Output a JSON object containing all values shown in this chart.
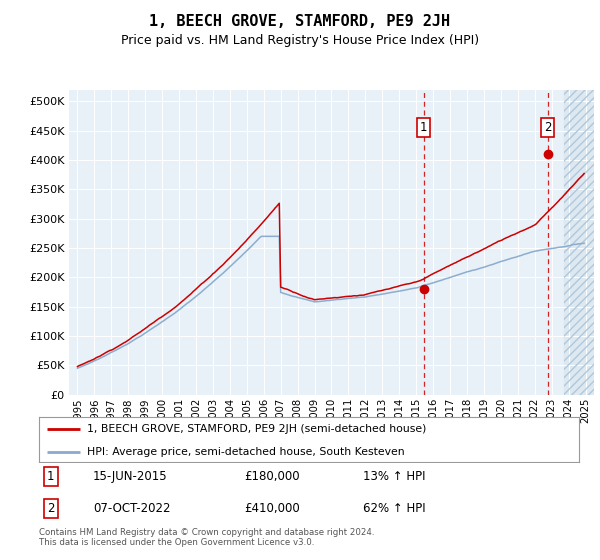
{
  "title": "1, BEECH GROVE, STAMFORD, PE9 2JH",
  "subtitle": "Price paid vs. HM Land Registry's House Price Index (HPI)",
  "red_label": "1, BEECH GROVE, STAMFORD, PE9 2JH (semi-detached house)",
  "blue_label": "HPI: Average price, semi-detached house, South Kesteven",
  "annotation1": {
    "label": "1",
    "date": "15-JUN-2015",
    "price": "£180,000",
    "hpi": "13% ↑ HPI",
    "x_year": 2015.45
  },
  "annotation2": {
    "label": "2",
    "date": "07-OCT-2022",
    "price": "£410,000",
    "hpi": "62% ↑ HPI",
    "x_year": 2022.77
  },
  "footer": "Contains HM Land Registry data © Crown copyright and database right 2024.\nThis data is licensed under the Open Government Licence v3.0.",
  "ylim": [
    0,
    520000
  ],
  "yticks": [
    0,
    50000,
    100000,
    150000,
    200000,
    250000,
    300000,
    350000,
    400000,
    450000,
    500000
  ],
  "ytick_labels": [
    "£0",
    "£50K",
    "£100K",
    "£150K",
    "£200K",
    "£250K",
    "£300K",
    "£350K",
    "£400K",
    "£450K",
    "£500K"
  ],
  "xlim_start": 1994.5,
  "xlim_end": 2025.5,
  "xtick_years": [
    1995,
    1996,
    1997,
    1998,
    1999,
    2000,
    2001,
    2002,
    2003,
    2004,
    2005,
    2006,
    2007,
    2008,
    2009,
    2010,
    2011,
    2012,
    2013,
    2014,
    2015,
    2016,
    2017,
    2018,
    2019,
    2020,
    2021,
    2022,
    2023,
    2024,
    2025
  ],
  "background_color": "#e8f0f8",
  "hatch_region_start": 2023.7,
  "red_color": "#cc0000",
  "blue_color": "#88aacc",
  "title_fontsize": 11,
  "subtitle_fontsize": 9,
  "sale1_x": 2015.45,
  "sale1_y": 180000,
  "sale2_x": 2022.77,
  "sale2_y": 410000
}
